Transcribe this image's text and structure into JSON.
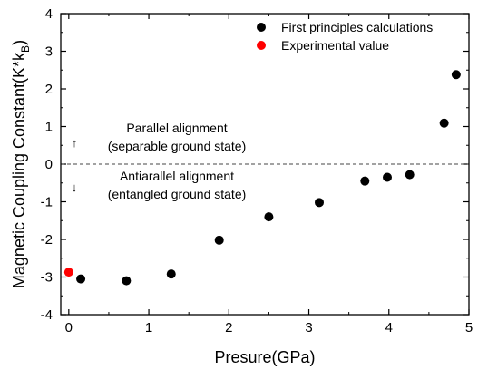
{
  "chart_data": {
    "type": "scatter",
    "title": "",
    "xlabel": "Presure(GPa)",
    "ylabel": "Magnetic Coupling Constant(K*k",
    "ylabel_sub": "B",
    "ylabel_close": ")",
    "xlim": [
      -0.1,
      5
    ],
    "ylim": [
      -4,
      4
    ],
    "xticks": [
      0,
      1,
      2,
      3,
      4,
      5
    ],
    "yticks": [
      -4,
      -3,
      -2,
      -1,
      0,
      1,
      2,
      3,
      4
    ],
    "grid": false,
    "legend_position": "top-right",
    "reference_line": {
      "y": 0,
      "style": "dashed"
    },
    "series": [
      {
        "name": "First principles calculations",
        "color": "#000000",
        "points": [
          {
            "x": 0.15,
            "y": -3.05
          },
          {
            "x": 0.72,
            "y": -3.1
          },
          {
            "x": 1.28,
            "y": -2.92
          },
          {
            "x": 1.88,
            "y": -2.02
          },
          {
            "x": 2.5,
            "y": -1.4
          },
          {
            "x": 3.13,
            "y": -1.02
          },
          {
            "x": 3.7,
            "y": -0.45
          },
          {
            "x": 3.98,
            "y": -0.35
          },
          {
            "x": 4.26,
            "y": -0.28
          },
          {
            "x": 4.69,
            "y": 1.09
          },
          {
            "x": 4.84,
            "y": 2.38
          }
        ]
      },
      {
        "name": "Experimental value",
        "color": "#ff0000",
        "points": [
          {
            "x": 0.0,
            "y": -2.87
          }
        ]
      }
    ],
    "annotations": [
      {
        "text": "Parallel alignment",
        "arrow": "up"
      },
      {
        "text": "(separable ground state)"
      },
      {
        "text": "Antiarallel alignment",
        "arrow": "down"
      },
      {
        "text": "(entangled ground state)"
      }
    ]
  }
}
